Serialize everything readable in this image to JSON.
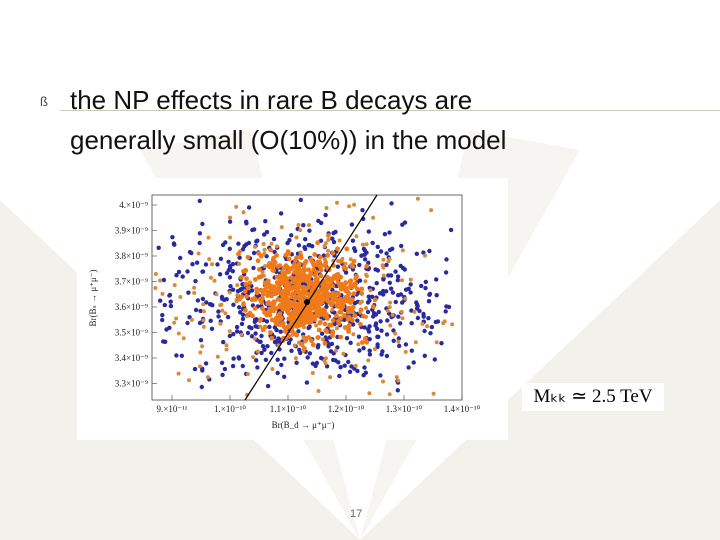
{
  "slide": {
    "bullet": "ß",
    "lines": [
      "the NP effects in rare B decays are",
      "generally small (O(10%)) in the model"
    ],
    "page_number": "17",
    "annotation": "Mₖₖ ≃ 2.5 TeV",
    "plot": {
      "y_axis_label": "Br(Bₛ → μ⁺μ⁻)",
      "x_axis_label": "Br(B_d → μ⁺μ⁻)",
      "y_tick_labels": [
        "4.×10⁻⁹",
        "3.9×10⁻⁹",
        "3.8×10⁻⁹",
        "3.7×10⁻⁹",
        "3.6×10⁻⁹",
        "3.5×10⁻⁹",
        "3.4×10⁻⁹",
        "3.3×10⁻⁹"
      ],
      "x_tick_labels": [
        "9.×10⁻¹¹",
        "1.×10⁻¹⁰",
        "1.1×10⁻¹⁰",
        "1.2×10⁻¹⁰",
        "1.3×10⁻¹⁰",
        "1.4×10⁻¹⁰"
      ]
    }
  }
}
